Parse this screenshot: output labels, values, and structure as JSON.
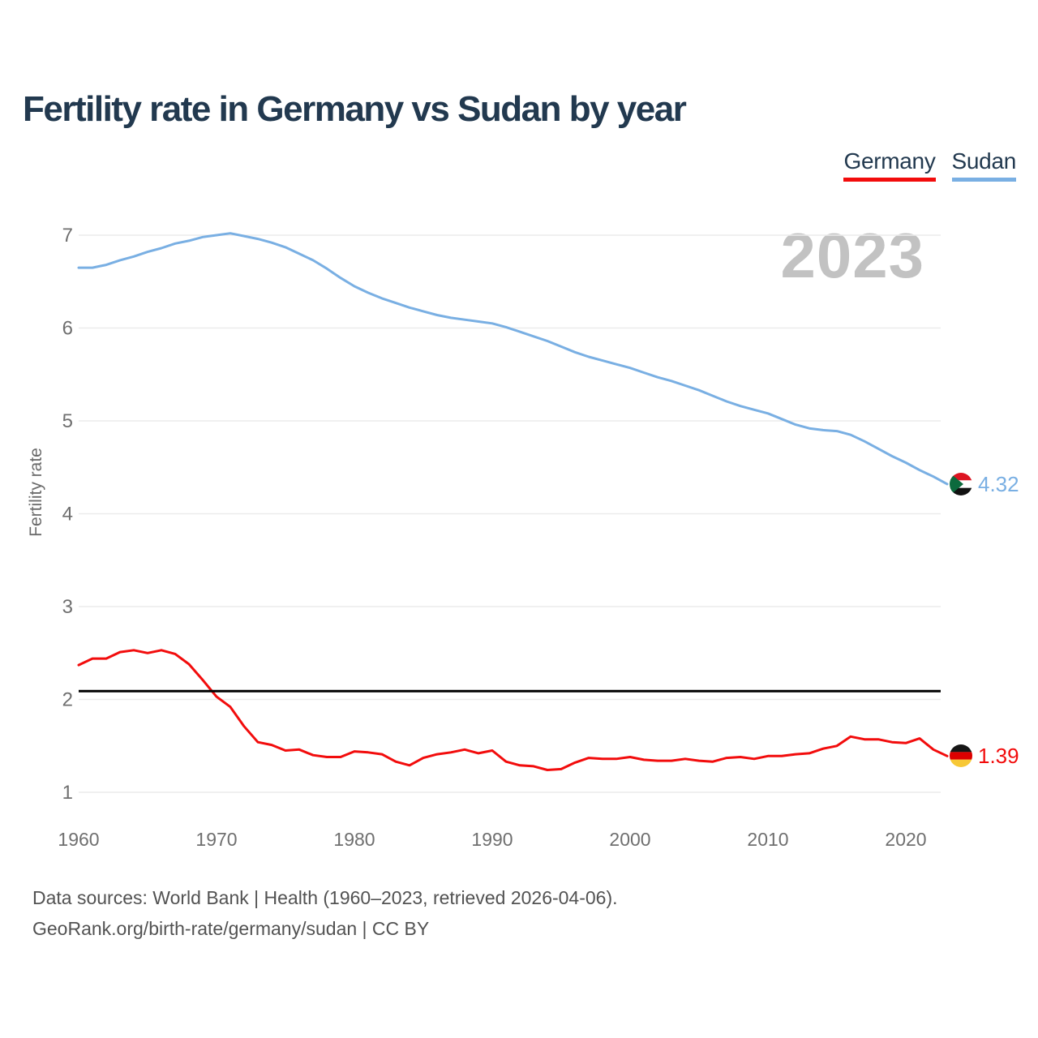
{
  "page": {
    "title": "Fertility rate in Germany vs Sudan by year"
  },
  "legend": {
    "items": [
      {
        "label": "Germany",
        "color": "#f20c0c"
      },
      {
        "label": "Sudan",
        "color": "#79afe3"
      }
    ]
  },
  "watermark": "2023",
  "axes": {
    "y_label": "Fertility rate",
    "y_ticks": [
      7,
      6,
      5,
      4,
      3,
      2,
      1
    ],
    "x_ticks": [
      1960,
      1970,
      1980,
      1990,
      2000,
      2010,
      2020
    ]
  },
  "end_labels": [
    {
      "series": "Sudan",
      "text": "4.32",
      "color": "#79afe3",
      "flag": "sudan-flag"
    },
    {
      "series": "Germany",
      "text": "1.39",
      "color": "#f20c0c",
      "flag": "germany-flag"
    }
  ],
  "footer": {
    "sources_line": "Data sources: World Bank | Health (1960–2023, retrieved 2026-04-06).",
    "license_line": "GeoRank.org/birth-rate/germany/sudan | CC BY"
  },
  "colors": {
    "title": "#22394f",
    "tick_label": "#6f6f6f",
    "gridline": "#ececec",
    "watermark": "#c2c2c2",
    "footer": "#525252",
    "reference_line": "#000000",
    "germany": "#f20c0c",
    "sudan": "#79afe3"
  },
  "chart_data": {
    "type": "line",
    "title": "Fertility rate in Germany vs Sudan by year",
    "xlabel": "",
    "ylabel": "Fertility rate",
    "ylim": [
      1,
      7
    ],
    "xlim": [
      1960,
      2023
    ],
    "grid": true,
    "legend_position": "top-right",
    "watermark": "2023",
    "reference_line": {
      "value": 2.09,
      "meaning": "replacement-level fertility"
    },
    "x_ticks": [
      1960,
      1970,
      1980,
      1990,
      2000,
      2010,
      2020
    ],
    "y_ticks": [
      1,
      2,
      3,
      4,
      5,
      6,
      7
    ],
    "x": [
      1960,
      1961,
      1962,
      1963,
      1964,
      1965,
      1966,
      1967,
      1968,
      1969,
      1970,
      1971,
      1972,
      1973,
      1974,
      1975,
      1976,
      1977,
      1978,
      1979,
      1980,
      1981,
      1982,
      1983,
      1984,
      1985,
      1986,
      1987,
      1988,
      1989,
      1990,
      1991,
      1992,
      1993,
      1994,
      1995,
      1996,
      1997,
      1998,
      1999,
      2000,
      2001,
      2002,
      2003,
      2004,
      2005,
      2006,
      2007,
      2008,
      2009,
      2010,
      2011,
      2012,
      2013,
      2014,
      2015,
      2016,
      2017,
      2018,
      2019,
      2020,
      2021,
      2022,
      2023
    ],
    "series": [
      {
        "name": "Sudan",
        "color": "#79afe3",
        "final_value": 4.32,
        "values": [
          6.65,
          6.65,
          6.68,
          6.73,
          6.77,
          6.82,
          6.86,
          6.91,
          6.94,
          6.98,
          7.0,
          7.02,
          6.99,
          6.96,
          6.92,
          6.87,
          6.8,
          6.73,
          6.64,
          6.54,
          6.45,
          6.38,
          6.32,
          6.27,
          6.22,
          6.18,
          6.14,
          6.11,
          6.09,
          6.07,
          6.05,
          6.01,
          5.96,
          5.91,
          5.86,
          5.8,
          5.74,
          5.69,
          5.65,
          5.61,
          5.57,
          5.52,
          5.47,
          5.43,
          5.38,
          5.33,
          5.27,
          5.21,
          5.16,
          5.12,
          5.08,
          5.02,
          4.96,
          4.92,
          4.9,
          4.89,
          4.85,
          4.78,
          4.7,
          4.62,
          4.55,
          4.47,
          4.4,
          4.32
        ]
      },
      {
        "name": "Germany",
        "color": "#f20c0c",
        "final_value": 1.39,
        "values": [
          2.37,
          2.44,
          2.44,
          2.51,
          2.53,
          2.5,
          2.53,
          2.49,
          2.38,
          2.21,
          2.03,
          1.92,
          1.71,
          1.54,
          1.51,
          1.45,
          1.46,
          1.4,
          1.38,
          1.38,
          1.44,
          1.43,
          1.41,
          1.33,
          1.29,
          1.37,
          1.41,
          1.43,
          1.46,
          1.42,
          1.45,
          1.33,
          1.29,
          1.28,
          1.24,
          1.25,
          1.32,
          1.37,
          1.36,
          1.36,
          1.38,
          1.35,
          1.34,
          1.34,
          1.36,
          1.34,
          1.33,
          1.37,
          1.38,
          1.36,
          1.39,
          1.39,
          1.41,
          1.42,
          1.47,
          1.5,
          1.6,
          1.57,
          1.57,
          1.54,
          1.53,
          1.58,
          1.46,
          1.39
        ]
      }
    ]
  }
}
